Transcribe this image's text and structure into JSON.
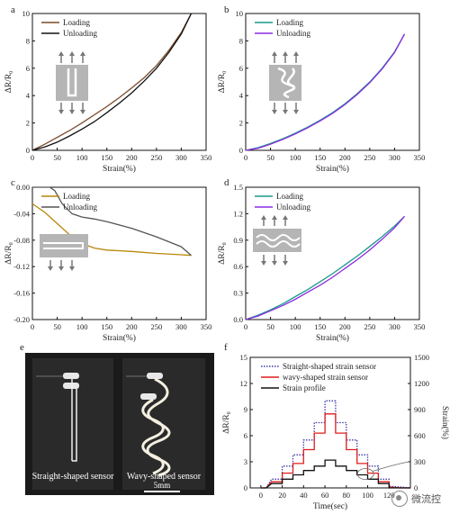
{
  "chart_data": [
    {
      "panel_label": "a",
      "type": "line",
      "xlabel": "Strain(%)",
      "ylabel": "ΔR/R₀",
      "xlim": [
        0,
        350
      ],
      "ylim": [
        0,
        10
      ],
      "xticks": [
        "0",
        "50",
        "100",
        "150",
        "200",
        "250",
        "300",
        "350"
      ],
      "yticks": [
        "0",
        "2",
        "4",
        "6",
        "8",
        "10"
      ],
      "legend_position": "top-left",
      "inset_icon": "straight-sensor-icon",
      "series": [
        {
          "name": "Loading",
          "color": "#7b4a2a",
          "x": [
            0,
            25,
            50,
            75,
            100,
            125,
            150,
            175,
            200,
            225,
            250,
            275,
            300,
            320
          ],
          "y": [
            0,
            0.45,
            0.95,
            1.45,
            2.0,
            2.6,
            3.2,
            3.85,
            4.55,
            5.3,
            6.2,
            7.3,
            8.6,
            10.0
          ]
        },
        {
          "name": "Unloading",
          "color": "#111111",
          "x": [
            0,
            25,
            50,
            75,
            100,
            125,
            150,
            175,
            200,
            225,
            250,
            275,
            300,
            320
          ],
          "y": [
            0,
            0.25,
            0.6,
            1.05,
            1.55,
            2.1,
            2.75,
            3.45,
            4.2,
            5.05,
            6.0,
            7.15,
            8.5,
            10.0
          ]
        }
      ]
    },
    {
      "panel_label": "b",
      "type": "line",
      "xlabel": "Strain(%)",
      "ylabel": "ΔR/R₀",
      "xlim": [
        0,
        350
      ],
      "ylim": [
        0,
        10
      ],
      "xticks": [
        "0",
        "50",
        "100",
        "150",
        "200",
        "250",
        "300",
        "350"
      ],
      "yticks": [
        "0",
        "2",
        "4",
        "6",
        "8",
        "10"
      ],
      "legend_position": "top-left",
      "inset_icon": "wavy-sensor-icon",
      "series": [
        {
          "name": "Loading",
          "color": "#1a9a8a",
          "x": [
            0,
            25,
            50,
            75,
            100,
            125,
            150,
            175,
            200,
            225,
            250,
            275,
            300,
            320
          ],
          "y": [
            0,
            0.2,
            0.5,
            0.85,
            1.25,
            1.7,
            2.2,
            2.75,
            3.4,
            4.15,
            5.0,
            6.0,
            7.2,
            8.5
          ]
        },
        {
          "name": "Unloading",
          "color": "#8a2be2",
          "x": [
            0,
            25,
            50,
            75,
            100,
            125,
            150,
            175,
            200,
            225,
            250,
            275,
            300,
            320
          ],
          "y": [
            0,
            0.15,
            0.45,
            0.8,
            1.2,
            1.65,
            2.15,
            2.7,
            3.35,
            4.1,
            4.95,
            5.95,
            7.15,
            8.5
          ]
        }
      ]
    },
    {
      "panel_label": "c",
      "type": "line",
      "xlabel": "Strain(%)",
      "ylabel": "ΔR/R₀",
      "xlim": [
        0,
        350
      ],
      "ylim": [
        -0.2,
        0
      ],
      "xticks": [
        "0",
        "50",
        "100",
        "150",
        "200",
        "250",
        "300",
        "350"
      ],
      "yticks": [
        "-0.20",
        "-0.16",
        "-0.12",
        "-0.08",
        "-0.04",
        "0.00"
      ],
      "legend_position": "top-left",
      "inset_icon": "straight-sensor-transverse-icon",
      "series": [
        {
          "name": "Loading",
          "color": "#b8860b",
          "x": [
            0,
            25,
            50,
            75,
            100,
            125,
            150,
            200,
            250,
            300,
            320
          ],
          "y": [
            -0.025,
            -0.038,
            -0.055,
            -0.072,
            -0.085,
            -0.092,
            -0.095,
            -0.097,
            -0.1,
            -0.102,
            -0.103
          ]
        },
        {
          "name": "Unloading",
          "color": "#555555",
          "x": [
            0,
            35,
            45,
            60,
            80,
            100,
            125,
            150,
            200,
            250,
            300,
            320
          ],
          "y": [
            0,
            0,
            -0.005,
            -0.025,
            -0.04,
            -0.045,
            -0.048,
            -0.052,
            -0.062,
            -0.075,
            -0.09,
            -0.103
          ]
        }
      ]
    },
    {
      "panel_label": "d",
      "type": "line",
      "xlabel": "Strain(%)",
      "ylabel": "ΔR/R₀",
      "xlim": [
        0,
        350
      ],
      "ylim": [
        0,
        1.5
      ],
      "xticks": [
        "0",
        "50",
        "100",
        "150",
        "200",
        "250",
        "300",
        "350"
      ],
      "yticks": [
        "0.0",
        "0.3",
        "0.6",
        "0.9",
        "1.2",
        "1.5"
      ],
      "legend_position": "top-left",
      "inset_icon": "wavy-sensor-transverse-icon",
      "series": [
        {
          "name": "Loading",
          "color": "#1a9a8a",
          "x": [
            0,
            25,
            50,
            75,
            100,
            125,
            150,
            175,
            200,
            225,
            250,
            275,
            300,
            320
          ],
          "y": [
            0,
            0.05,
            0.11,
            0.18,
            0.26,
            0.34,
            0.43,
            0.52,
            0.62,
            0.72,
            0.83,
            0.94,
            1.06,
            1.17
          ]
        },
        {
          "name": "Unloading",
          "color": "#8a2be2",
          "x": [
            0,
            25,
            50,
            75,
            100,
            125,
            150,
            175,
            200,
            225,
            250,
            275,
            300,
            320
          ],
          "y": [
            0,
            0.04,
            0.1,
            0.16,
            0.23,
            0.31,
            0.39,
            0.48,
            0.58,
            0.68,
            0.79,
            0.91,
            1.04,
            1.17
          ]
        }
      ]
    },
    {
      "panel_label": "f",
      "type": "line",
      "xlabel": "Time(sec)",
      "ylabel": "ΔR/R₀",
      "ylabel_right": "Strain(%)",
      "xlim": [
        -10,
        140
      ],
      "ylim": [
        0,
        15
      ],
      "ylim_right": [
        0,
        1500
      ],
      "xticks": [
        "0",
        "20",
        "40",
        "60",
        "80",
        "100",
        "120"
      ],
      "yticks": [
        "0",
        "3",
        "6",
        "9",
        "12",
        "15"
      ],
      "yticks_right": [
        "0",
        "300",
        "600",
        "900",
        "1200",
        "1500"
      ],
      "legend_position": "top",
      "series": [
        {
          "name": "Straight-shaped strain sensor",
          "color": "#3a3aa8",
          "style": "dotted",
          "axis": "left",
          "x": [
            0,
            5,
            10,
            20,
            20,
            30,
            30,
            40,
            40,
            50,
            50,
            60,
            60,
            70,
            70,
            80,
            80,
            90,
            90,
            100,
            100,
            110,
            110,
            120,
            120,
            130,
            140
          ],
          "y": [
            0,
            0,
            1.0,
            1.0,
            2.5,
            2.5,
            3.8,
            3.8,
            5.5,
            5.5,
            7.5,
            7.5,
            10.0,
            10.0,
            7.5,
            7.5,
            5.5,
            5.5,
            3.8,
            3.8,
            2.5,
            2.5,
            1.0,
            1.0,
            0.2,
            0.1,
            0
          ]
        },
        {
          "name": "wavy-shaped strain sensor",
          "color": "#e01c1c",
          "style": "solid",
          "axis": "left",
          "x": [
            0,
            5,
            10,
            20,
            20,
            30,
            30,
            40,
            40,
            50,
            50,
            60,
            60,
            70,
            70,
            80,
            80,
            90,
            90,
            100,
            100,
            110,
            110,
            120,
            120,
            130,
            140
          ],
          "y": [
            0,
            0,
            0.7,
            0.7,
            1.7,
            1.7,
            2.8,
            2.8,
            4.4,
            4.4,
            6.3,
            6.3,
            8.5,
            8.5,
            6.3,
            6.3,
            4.4,
            4.4,
            2.8,
            2.8,
            1.7,
            1.7,
            0.7,
            0.7,
            0.1,
            0,
            0
          ]
        },
        {
          "name": "Strain profile",
          "color": "#111111",
          "style": "solid",
          "axis": "right",
          "x": [
            0,
            5,
            10,
            20,
            20,
            30,
            30,
            40,
            40,
            50,
            50,
            60,
            60,
            70,
            70,
            80,
            80,
            90,
            90,
            100,
            100,
            110,
            110,
            120,
            120,
            130,
            140
          ],
          "y": [
            0,
            0,
            50,
            50,
            100,
            100,
            150,
            150,
            200,
            200,
            250,
            250,
            320,
            320,
            250,
            250,
            200,
            200,
            150,
            150,
            100,
            100,
            50,
            50,
            0,
            0,
            0
          ]
        }
      ]
    }
  ],
  "photo_panel": {
    "panel_label": "e",
    "left_caption": "Straight-shaped sensor",
    "right_caption": "Wavy-shaped sensor",
    "scale_bar": "5mm"
  },
  "watermark": {
    "text": "微流控"
  }
}
